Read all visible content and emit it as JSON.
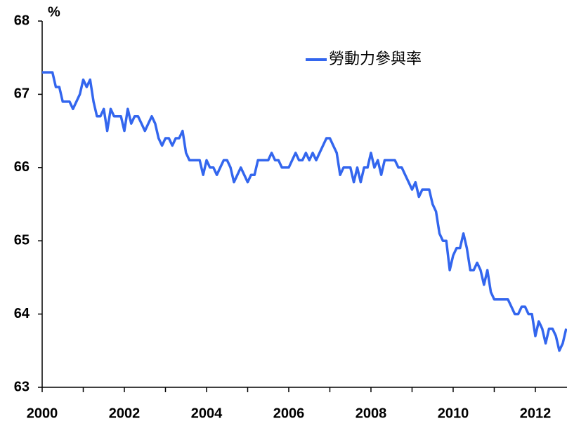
{
  "chart_data": {
    "type": "line",
    "y_unit": "%",
    "xlim": [
      2000,
      2012.77
    ],
    "ylim": [
      63,
      68
    ],
    "xticks": [
      2000,
      2002,
      2004,
      2006,
      2008,
      2010,
      2012
    ],
    "yticks": [
      63,
      64,
      65,
      66,
      67,
      68
    ],
    "legend": "top-right",
    "x": [
      2000,
      2000.083,
      2000.167,
      2000.25,
      2000.333,
      2000.417,
      2000.5,
      2000.583,
      2000.667,
      2000.75,
      2000.833,
      2000.917,
      2001,
      2001.083,
      2001.167,
      2001.25,
      2001.333,
      2001.417,
      2001.5,
      2001.583,
      2001.667,
      2001.75,
      2001.833,
      2001.917,
      2002,
      2002.083,
      2002.167,
      2002.25,
      2002.333,
      2002.417,
      2002.5,
      2002.583,
      2002.667,
      2002.75,
      2002.833,
      2002.917,
      2003,
      2003.083,
      2003.167,
      2003.25,
      2003.333,
      2003.417,
      2003.5,
      2003.583,
      2003.667,
      2003.75,
      2003.833,
      2003.917,
      2004,
      2004.083,
      2004.167,
      2004.25,
      2004.333,
      2004.417,
      2004.5,
      2004.583,
      2004.667,
      2004.75,
      2004.833,
      2004.917,
      2005,
      2005.083,
      2005.167,
      2005.25,
      2005.333,
      2005.417,
      2005.5,
      2005.583,
      2005.667,
      2005.75,
      2005.833,
      2005.917,
      2006,
      2006.083,
      2006.167,
      2006.25,
      2006.333,
      2006.417,
      2006.5,
      2006.583,
      2006.667,
      2006.75,
      2006.833,
      2006.917,
      2007,
      2007.083,
      2007.167,
      2007.25,
      2007.333,
      2007.417,
      2007.5,
      2007.583,
      2007.667,
      2007.75,
      2007.833,
      2007.917,
      2008,
      2008.083,
      2008.167,
      2008.25,
      2008.333,
      2008.417,
      2008.5,
      2008.583,
      2008.667,
      2008.75,
      2008.833,
      2008.917,
      2009,
      2009.083,
      2009.167,
      2009.25,
      2009.333,
      2009.417,
      2009.5,
      2009.583,
      2009.667,
      2009.75,
      2009.833,
      2009.917,
      2010,
      2010.083,
      2010.167,
      2010.25,
      2010.333,
      2010.417,
      2010.5,
      2010.583,
      2010.667,
      2010.75,
      2010.833,
      2010.917,
      2011,
      2011.083,
      2011.167,
      2011.25,
      2011.333,
      2011.417,
      2011.5,
      2011.583,
      2011.667,
      2011.75,
      2011.833,
      2011.917,
      2012,
      2012.083,
      2012.167,
      2012.25,
      2012.333,
      2012.417,
      2012.5,
      2012.583,
      2012.667,
      2012.75
    ],
    "series": [
      {
        "name": "勞動力參與率",
        "color": "#3366ee",
        "values": [
          67.3,
          67.3,
          67.3,
          67.3,
          67.1,
          67.1,
          66.9,
          66.9,
          66.9,
          66.8,
          66.9,
          67.0,
          67.2,
          67.1,
          67.2,
          66.9,
          66.7,
          66.7,
          66.8,
          66.5,
          66.8,
          66.7,
          66.7,
          66.7,
          66.5,
          66.8,
          66.6,
          66.7,
          66.7,
          66.6,
          66.5,
          66.6,
          66.7,
          66.6,
          66.4,
          66.3,
          66.4,
          66.4,
          66.3,
          66.4,
          66.4,
          66.5,
          66.2,
          66.1,
          66.1,
          66.1,
          66.1,
          65.9,
          66.1,
          66.0,
          66.0,
          65.9,
          66.0,
          66.1,
          66.1,
          66.0,
          65.8,
          65.9,
          66.0,
          65.9,
          65.8,
          65.9,
          65.9,
          66.1,
          66.1,
          66.1,
          66.1,
          66.2,
          66.1,
          66.1,
          66.0,
          66.0,
          66.0,
          66.1,
          66.2,
          66.1,
          66.1,
          66.2,
          66.1,
          66.2,
          66.1,
          66.2,
          66.3,
          66.4,
          66.4,
          66.3,
          66.2,
          65.9,
          66.0,
          66.0,
          66.0,
          65.8,
          66.0,
          65.8,
          66.0,
          66.0,
          66.2,
          66.0,
          66.1,
          65.9,
          66.1,
          66.1,
          66.1,
          66.1,
          66.0,
          66.0,
          65.9,
          65.8,
          65.7,
          65.8,
          65.6,
          65.7,
          65.7,
          65.7,
          65.5,
          65.4,
          65.1,
          65.0,
          65.0,
          64.6,
          64.8,
          64.9,
          64.9,
          65.1,
          64.9,
          64.6,
          64.6,
          64.7,
          64.6,
          64.4,
          64.6,
          64.3,
          64.2,
          64.2,
          64.2,
          64.2,
          64.2,
          64.1,
          64.0,
          64.0,
          64.1,
          64.1,
          64.0,
          64.0,
          63.7,
          63.9,
          63.8,
          63.6,
          63.8,
          63.8,
          63.7,
          63.5,
          63.6,
          63.8
        ]
      }
    ]
  }
}
